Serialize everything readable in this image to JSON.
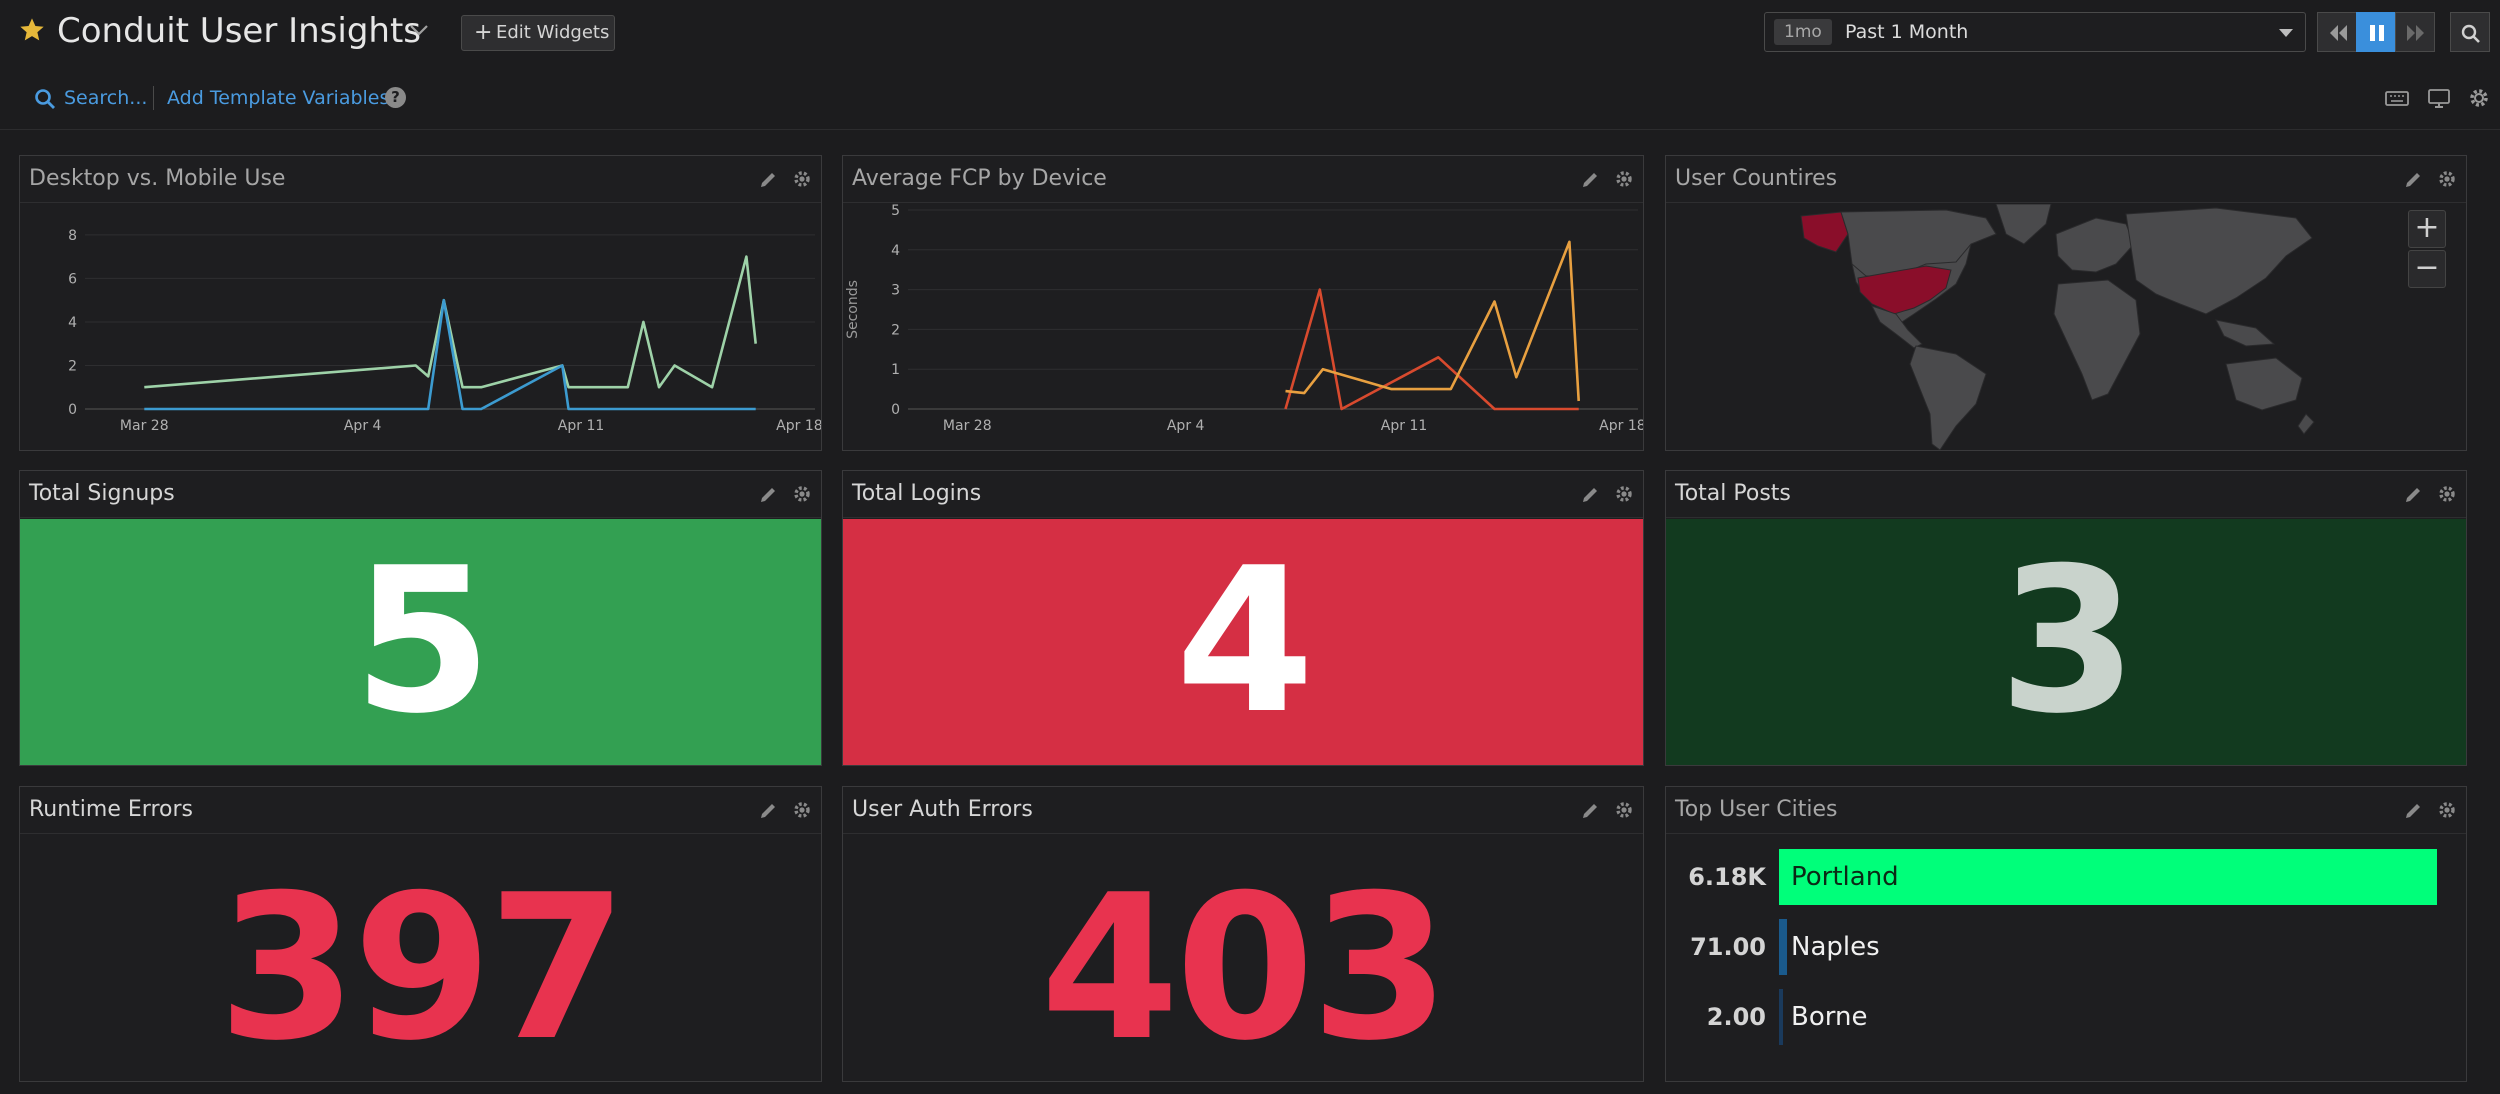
{
  "header": {
    "title": "Conduit User Insights",
    "edit_widgets_label": "Edit Widgets",
    "time_chip": "1mo",
    "time_range": "Past 1 Month"
  },
  "subbar": {
    "search_label": "Search...",
    "template_vars_label": "Add Template Variables",
    "help_glyph": "?"
  },
  "widgets": {
    "desktop_mobile": {
      "title": "Desktop vs. Mobile Use"
    },
    "avg_fcp": {
      "title": "Average FCP by Device"
    },
    "user_countries": {
      "title": "User Countires"
    },
    "total_signups": {
      "title": "Total Signups",
      "value": "5",
      "bg": "#33a052",
      "fg": "#ffffff"
    },
    "total_logins": {
      "title": "Total Logins",
      "value": "4",
      "bg": "#d52f44",
      "fg": "#ffffff"
    },
    "total_posts": {
      "title": "Total Posts",
      "value": "3",
      "bg": "#123a1f",
      "fg": "#c9d3cc"
    },
    "runtime_errors": {
      "title": "Runtime Errors",
      "value": "397",
      "fg": "#e8334f"
    },
    "user_auth_errors": {
      "title": "User Auth Errors",
      "value": "403",
      "fg": "#e8334f"
    },
    "top_user_cities": {
      "title": "Top User Cities",
      "rows": [
        {
          "value": "6.18K",
          "name": "Portland",
          "fraction": 1.0,
          "color": "#00ff7a"
        },
        {
          "value": "71.00",
          "name": "Naples",
          "fraction": 0.0115,
          "color": "#1a5a8c"
        },
        {
          "value": "2.00",
          "name": "Borne",
          "fraction": 0.0003,
          "color": "#1a3a5c"
        }
      ]
    }
  },
  "map_zoom": {
    "plus": "+",
    "minus": "−"
  },
  "chart_data": [
    {
      "type": "line",
      "title": "Desktop vs. Mobile Use",
      "x_ticks": [
        "Mar 28",
        "Apr 4",
        "Apr 11",
        "Apr 18"
      ],
      "y_ticks": [
        "0",
        "2",
        "4",
        "6",
        "8"
      ],
      "ylim": [
        0,
        8.5
      ],
      "xlim": [
        -1.9,
        21.5
      ],
      "series": [
        {
          "color": "#9ed2a8",
          "x": [
            0.0,
            8.7,
            9.1,
            9.6,
            10.2,
            10.8,
            13.4,
            13.6,
            15.5,
            16.0,
            16.5,
            17.0,
            18.2,
            19.3,
            19.6
          ],
          "y": [
            1.0,
            2.0,
            1.5,
            5.0,
            1.0,
            1.0,
            2.0,
            1.0,
            1.0,
            4.0,
            1.0,
            2.0,
            1.0,
            7.0,
            3.0
          ]
        },
        {
          "color": "#3c9bd0",
          "x": [
            0.0,
            9.1,
            9.6,
            10.2,
            10.8,
            13.4,
            13.6,
            19.6
          ],
          "y": [
            0.0,
            0.0,
            5.0,
            0.0,
            0.0,
            2.0,
            0.0,
            0.0
          ]
        }
      ]
    },
    {
      "type": "line",
      "title": "Average FCP by Device",
      "ylabel": "Seconds",
      "x_ticks": [
        "Mar 28",
        "Apr 4",
        "Apr 11",
        "Apr 18"
      ],
      "y_ticks": [
        "0",
        "1",
        "2",
        "3",
        "4",
        "5"
      ],
      "ylim": [
        0,
        5
      ],
      "xlim": [
        -1.9,
        21.5
      ],
      "series": [
        {
          "color": "#d84a2e",
          "x": [
            10.2,
            11.3,
            12.0,
            15.1,
            16.9,
            19.6
          ],
          "y": [
            0.0,
            3.0,
            0.0,
            1.3,
            0.0,
            0.0
          ]
        },
        {
          "color": "#e8a040",
          "x": [
            10.2,
            10.8,
            11.4,
            13.6,
            15.1,
            15.5,
            16.9,
            17.6,
            19.3,
            19.6
          ],
          "y": [
            0.45,
            0.4,
            1.0,
            0.5,
            0.5,
            0.5,
            2.7,
            0.8,
            4.2,
            0.2
          ]
        }
      ]
    }
  ]
}
